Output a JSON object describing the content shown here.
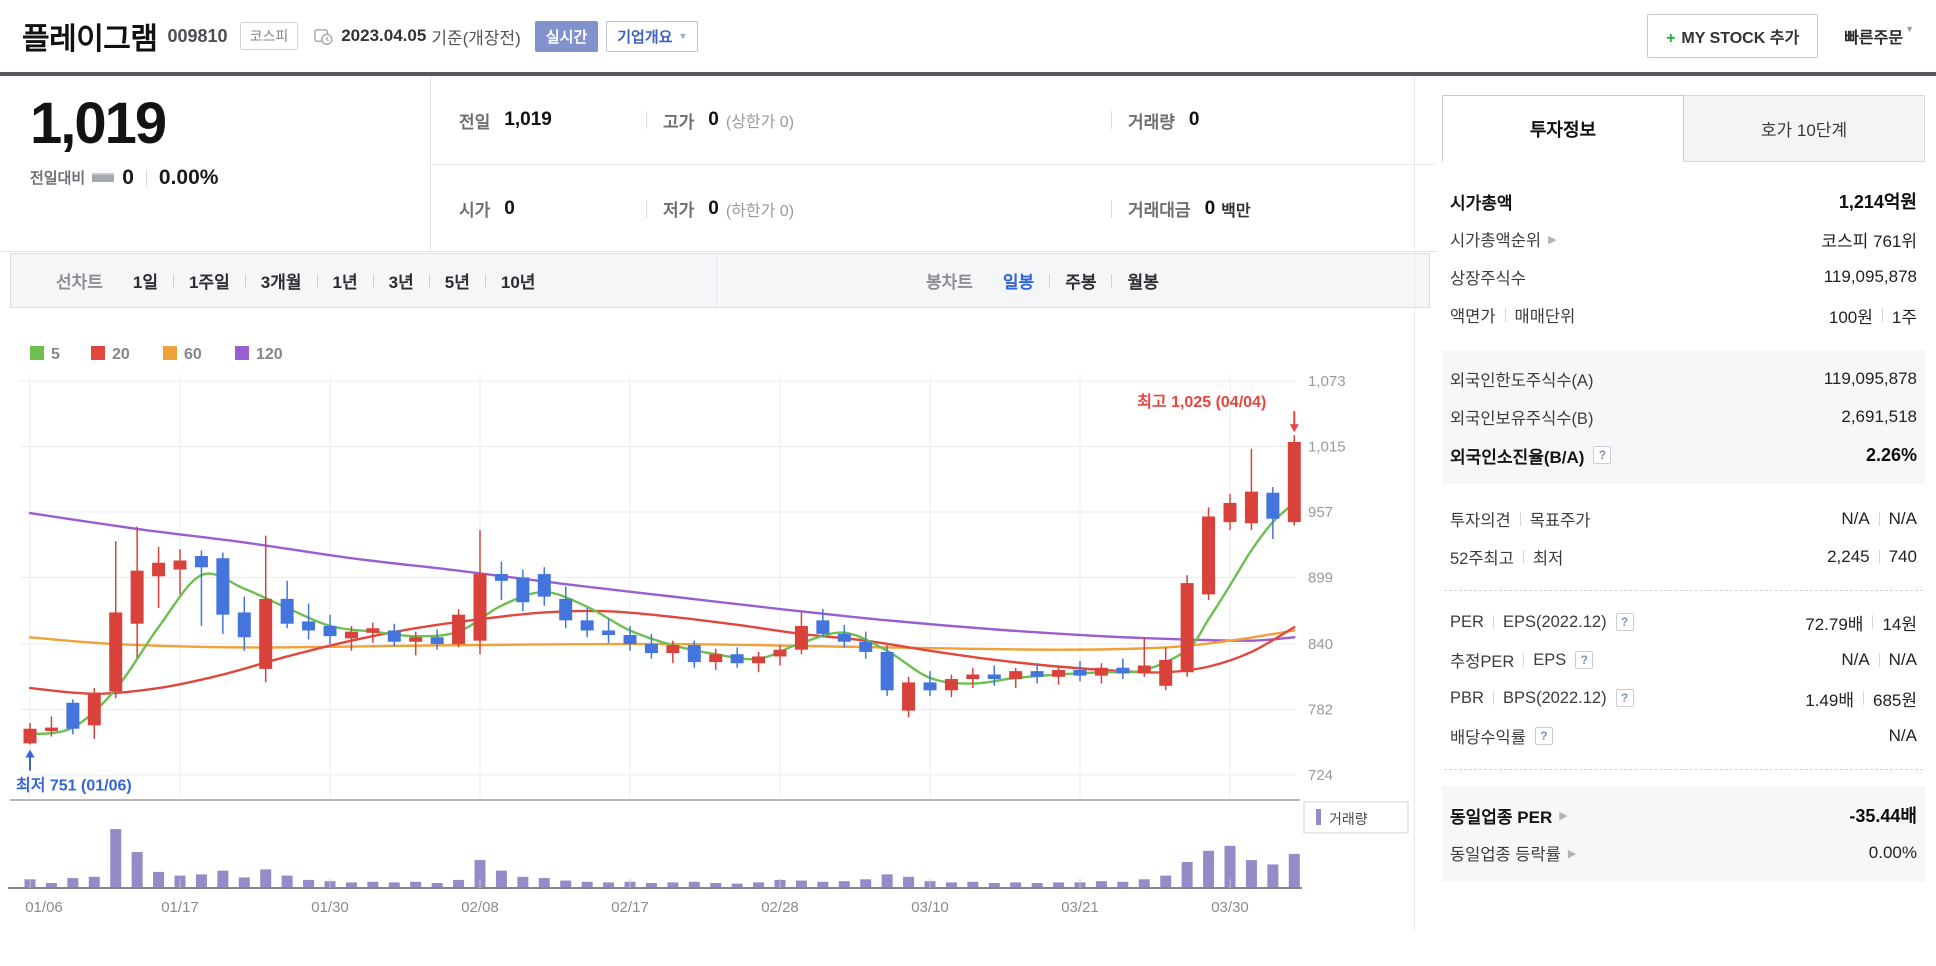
{
  "header": {
    "title": "플레이그램",
    "code": "009810",
    "market_badge": "코스피",
    "date": "2023.04.05",
    "date_suffix": "기준(개장전)",
    "realtime_badge": "실시간",
    "company_overview_button": "기업개요",
    "my_stock_plus": "+",
    "my_stock_label": "MY STOCK 추가",
    "quick_order": "빠른주문"
  },
  "price": {
    "current": "1,019",
    "change_label": "전일대비",
    "change_value": "0",
    "change_percent": "0.00%"
  },
  "summary_table": {
    "rows": [
      [
        {
          "label": "전일",
          "value": "1,019"
        },
        {
          "label": "고가",
          "value": "0",
          "sub": "(상한가 0)"
        },
        {
          "label": "거래량",
          "value": "0"
        }
      ],
      [
        {
          "label": "시가",
          "value": "0"
        },
        {
          "label": "저가",
          "value": "0",
          "sub": "(하한가 0)"
        },
        {
          "label": "거래대금",
          "value": "0",
          "unit": "백만"
        }
      ]
    ]
  },
  "chart_tabs": {
    "line_group_label": "선차트",
    "line_tabs": [
      "1일",
      "1주일",
      "3개월",
      "1년",
      "3년",
      "5년",
      "10년"
    ],
    "candle_group_label": "봉차트",
    "candle_tabs": [
      "일봉",
      "주봉",
      "월봉"
    ],
    "active_candle_tab": "일봉"
  },
  "chart_data": {
    "type": "candlestick",
    "title": "플레이그램 일봉 차트",
    "y_range": [
      724,
      1073
    ],
    "y_ticks": [
      [
        1073,
        "1,073"
      ],
      [
        1015,
        "1,015"
      ],
      [
        957,
        "957"
      ],
      [
        899,
        "899"
      ],
      [
        840,
        "840"
      ],
      [
        782,
        "782"
      ],
      [
        724,
        "724"
      ]
    ],
    "x_ticks": [
      "01/06",
      "01/17",
      "01/30",
      "02/08",
      "02/17",
      "02/28",
      "03/10",
      "03/21",
      "03/30"
    ],
    "x_tick_indices": [
      0,
      7,
      14,
      21,
      28,
      35,
      42,
      49,
      56
    ],
    "legend_ma": [
      {
        "period": 5,
        "color": "#6dbf51"
      },
      {
        "period": 20,
        "color": "#e0473d"
      },
      {
        "period": 60,
        "color": "#efa13a"
      },
      {
        "period": 120,
        "color": "#9a5ed2"
      }
    ],
    "volume_legend": "거래량",
    "up_color": "#d8423a",
    "down_color": "#4375dd",
    "volume_color": "#948bc8",
    "annotations": {
      "high": {
        "text": "최고 1,025 (04/04)",
        "value": 1025,
        "date": "04/04",
        "color": "#e8453d"
      },
      "low": {
        "text": "최저 751 (01/06)",
        "value": 751,
        "date": "01/06",
        "color": "#3565d6"
      }
    },
    "candles_format": [
      "date",
      "open",
      "high",
      "low",
      "close",
      "volume_rel"
    ],
    "candles": [
      [
        "01/06",
        752,
        770,
        751,
        765,
        14
      ],
      [
        "01/09",
        763,
        776,
        758,
        766,
        8
      ],
      [
        "01/10",
        788,
        791,
        760,
        765,
        16
      ],
      [
        "01/11",
        768,
        801,
        756,
        796,
        18
      ],
      [
        "01/12",
        798,
        931,
        792,
        868,
        95
      ],
      [
        "01/13",
        858,
        944,
        828,
        905,
        58
      ],
      [
        "01/16",
        900,
        926,
        872,
        912,
        26
      ],
      [
        "01/17",
        906,
        924,
        884,
        914,
        20
      ],
      [
        "01/18",
        918,
        923,
        856,
        908,
        22
      ],
      [
        "01/19",
        916,
        921,
        849,
        866,
        28
      ],
      [
        "01/20",
        868,
        882,
        834,
        846,
        17
      ],
      [
        "01/25",
        818,
        936,
        806,
        880,
        30
      ],
      [
        "01/26",
        880,
        896,
        854,
        858,
        20
      ],
      [
        "01/27",
        860,
        876,
        844,
        852,
        13
      ],
      [
        "01/30",
        856,
        866,
        840,
        847,
        11
      ],
      [
        "01/31",
        845,
        856,
        834,
        851,
        9
      ],
      [
        "02/01",
        850,
        859,
        841,
        854,
        10
      ],
      [
        "02/02",
        852,
        858,
        838,
        842,
        9
      ],
      [
        "02/03",
        842,
        851,
        830,
        846,
        10
      ],
      [
        "02/06",
        846,
        853,
        835,
        840,
        8
      ],
      [
        "02/07",
        840,
        871,
        837,
        866,
        13
      ],
      [
        "02/08",
        843,
        941,
        831,
        902,
        45
      ],
      [
        "02/09",
        902,
        913,
        879,
        896,
        28
      ],
      [
        "02/10",
        899,
        906,
        869,
        877,
        18
      ],
      [
        "02/13",
        902,
        908,
        874,
        882,
        16
      ],
      [
        "02/14",
        880,
        891,
        854,
        861,
        12
      ],
      [
        "02/15",
        861,
        872,
        846,
        852,
        10
      ],
      [
        "02/16",
        852,
        862,
        841,
        848,
        9
      ],
      [
        "02/17",
        848,
        856,
        834,
        840,
        10
      ],
      [
        "02/20",
        840,
        849,
        827,
        832,
        8
      ],
      [
        "02/21",
        832,
        843,
        823,
        839,
        9
      ],
      [
        "02/22",
        839,
        843,
        819,
        824,
        10
      ],
      [
        "02/23",
        824,
        836,
        817,
        831,
        8
      ],
      [
        "02/24",
        831,
        837,
        819,
        823,
        7
      ],
      [
        "02/27",
        823,
        833,
        815,
        829,
        9
      ],
      [
        "02/28",
        829,
        839,
        821,
        835,
        13
      ],
      [
        "03/02",
        835,
        869,
        831,
        856,
        12
      ],
      [
        "03/03",
        861,
        871,
        846,
        849,
        10
      ],
      [
        "03/06",
        849,
        857,
        837,
        842,
        11
      ],
      [
        "03/07",
        842,
        851,
        827,
        833,
        14
      ],
      [
        "03/08",
        833,
        839,
        794,
        799,
        22
      ],
      [
        "03/09",
        781,
        811,
        775,
        806,
        18
      ],
      [
        "03/10",
        806,
        816,
        794,
        799,
        11
      ],
      [
        "03/13",
        799,
        813,
        793,
        809,
        9
      ],
      [
        "03/14",
        809,
        819,
        801,
        813,
        10
      ],
      [
        "03/15",
        813,
        821,
        803,
        809,
        8
      ],
      [
        "03/16",
        809,
        819,
        801,
        816,
        9
      ],
      [
        "03/17",
        816,
        823,
        805,
        811,
        8
      ],
      [
        "03/20",
        811,
        821,
        804,
        817,
        9
      ],
      [
        "03/21",
        817,
        825,
        807,
        812,
        9
      ],
      [
        "03/22",
        812,
        823,
        805,
        819,
        11
      ],
      [
        "03/23",
        819,
        827,
        809,
        814,
        10
      ],
      [
        "03/24",
        814,
        846,
        811,
        821,
        14
      ],
      [
        "03/27",
        803,
        837,
        799,
        826,
        20
      ],
      [
        "03/28",
        815,
        901,
        811,
        894,
        42
      ],
      [
        "03/29",
        884,
        961,
        879,
        953,
        60
      ],
      [
        "03/30",
        948,
        973,
        941,
        965,
        68
      ],
      [
        "03/31",
        947,
        1013,
        941,
        975,
        45
      ],
      [
        "04/03",
        974,
        979,
        933,
        951,
        38
      ],
      [
        "04/04",
        948,
        1025,
        945,
        1019,
        55
      ]
    ],
    "ma_lines": [
      {
        "period": 5,
        "color": "#6dbf51",
        "points": [
          [
            0,
            760
          ],
          [
            2,
            766
          ],
          [
            4,
            800
          ],
          [
            6,
            855
          ],
          [
            8,
            901
          ],
          [
            10,
            889
          ],
          [
            12,
            872
          ],
          [
            14,
            856
          ],
          [
            16,
            851
          ],
          [
            18,
            847
          ],
          [
            20,
            851
          ],
          [
            22,
            874
          ],
          [
            24,
            886
          ],
          [
            26,
            873
          ],
          [
            28,
            852
          ],
          [
            30,
            839
          ],
          [
            32,
            831
          ],
          [
            34,
            827
          ],
          [
            36,
            841
          ],
          [
            38,
            850
          ],
          [
            40,
            834
          ],
          [
            42,
            810
          ],
          [
            44,
            805
          ],
          [
            46,
            810
          ],
          [
            48,
            813
          ],
          [
            50,
            815
          ],
          [
            52,
            817
          ],
          [
            54,
            835
          ],
          [
            55,
            862
          ],
          [
            56,
            892
          ],
          [
            57,
            923
          ],
          [
            58,
            948
          ],
          [
            59,
            965
          ]
        ]
      },
      {
        "period": 20,
        "color": "#e0473d",
        "points": [
          [
            0,
            801
          ],
          [
            3,
            796
          ],
          [
            6,
            801
          ],
          [
            9,
            813
          ],
          [
            12,
            829
          ],
          [
            15,
            843
          ],
          [
            18,
            854
          ],
          [
            21,
            862
          ],
          [
            24,
            868
          ],
          [
            27,
            869
          ],
          [
            30,
            864
          ],
          [
            33,
            857
          ],
          [
            36,
            849
          ],
          [
            39,
            843
          ],
          [
            42,
            834
          ],
          [
            45,
            826
          ],
          [
            48,
            820
          ],
          [
            51,
            816
          ],
          [
            53,
            815
          ],
          [
            55,
            820
          ],
          [
            57,
            833
          ],
          [
            59,
            855
          ]
        ]
      },
      {
        "period": 60,
        "color": "#efa13a",
        "points": [
          [
            0,
            846
          ],
          [
            4,
            840
          ],
          [
            10,
            837
          ],
          [
            20,
            839
          ],
          [
            30,
            840
          ],
          [
            40,
            837
          ],
          [
            48,
            835
          ],
          [
            53,
            837
          ],
          [
            56,
            843
          ],
          [
            59,
            852
          ]
        ]
      },
      {
        "period": 120,
        "color": "#9a5ed2",
        "points": [
          [
            0,
            956
          ],
          [
            5,
            942
          ],
          [
            10,
            930
          ],
          [
            15,
            916
          ],
          [
            20,
            905
          ],
          [
            25,
            893
          ],
          [
            30,
            882
          ],
          [
            35,
            871
          ],
          [
            40,
            861
          ],
          [
            45,
            853
          ],
          [
            50,
            847
          ],
          [
            54,
            844
          ],
          [
            57,
            843
          ],
          [
            59,
            846
          ]
        ]
      }
    ]
  },
  "side_panel": {
    "tabs": [
      {
        "label": "투자정보",
        "active": true
      },
      {
        "label": "호가 10단계",
        "active": false
      }
    ],
    "sections": [
      {
        "style": "plain",
        "divider_top": false,
        "rows": [
          {
            "label": "시가총액",
            "value": "1,214억원",
            "bold": true
          },
          {
            "label": "시가총액순위",
            "arrow": true,
            "value": "코스피 761위"
          },
          {
            "label": "상장주식수",
            "value": "119,095,878"
          },
          {
            "label": "액면가",
            "label2": "매매단위",
            "value": "100원",
            "value2": "1주"
          }
        ]
      },
      {
        "style": "shaded",
        "divider_top": false,
        "rows": [
          {
            "label": "외국인한도주식수(A)",
            "value": "119,095,878"
          },
          {
            "label": "외국인보유주식수(B)",
            "value": "2,691,518"
          },
          {
            "label": "외국인소진율(B/A)",
            "help": true,
            "value": "2.26%",
            "bold": true
          }
        ]
      },
      {
        "style": "plain",
        "divider_top": false,
        "rows": [
          {
            "label": "투자의견",
            "label2": "목표주가",
            "value": "N/A",
            "value2": "N/A"
          },
          {
            "label": "52주최고",
            "label2": "최저",
            "value": "2,245",
            "value2": "740"
          }
        ]
      },
      {
        "style": "plain",
        "divider_top": true,
        "rows": [
          {
            "label": "PER",
            "label2": "EPS(2022.12)",
            "help": true,
            "value": "72.79배",
            "value2": "14원"
          },
          {
            "label": "추정PER",
            "label2": "EPS",
            "help": true,
            "value": "N/A",
            "value2": "N/A"
          },
          {
            "label": "PBR",
            "label2": "BPS(2022.12)",
            "help": true,
            "value": "1.49배",
            "value2": "685원"
          },
          {
            "label": "배당수익률",
            "help": true,
            "value": "N/A"
          }
        ]
      },
      {
        "style": "shaded",
        "divider_top": true,
        "rows": [
          {
            "label": "동일업종 PER",
            "arrow": true,
            "value": "-35.44배",
            "bold": true
          },
          {
            "label": "동일업종 등락률",
            "arrow": true,
            "value": "0.00%"
          }
        ]
      }
    ]
  }
}
